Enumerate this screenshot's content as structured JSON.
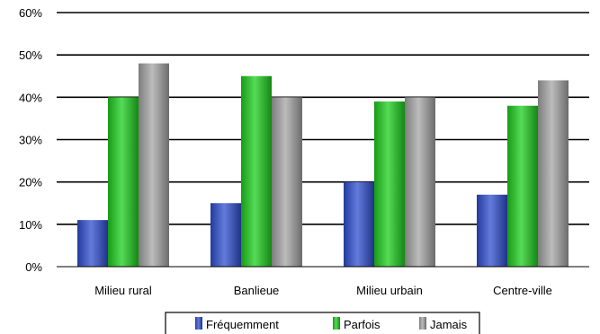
{
  "chart_data": {
    "type": "bar",
    "title": "",
    "xlabel": "",
    "ylabel": "",
    "ylim": [
      0,
      60
    ],
    "yticks": [
      0,
      10,
      20,
      30,
      40,
      50,
      60
    ],
    "ytick_labels": [
      "0%",
      "10%",
      "20%",
      "30%",
      "40%",
      "50%",
      "60%"
    ],
    "categories": [
      "Milieu rural",
      "Banlieue",
      "Milieu urbain",
      "Centre-ville"
    ],
    "series": [
      {
        "name": "Fréquemment",
        "values": [
          11,
          15,
          20,
          17
        ],
        "color": "#2f4fd0"
      },
      {
        "name": "Parfois",
        "values": [
          40,
          45,
          39,
          38
        ],
        "color": "#1ecf1e"
      },
      {
        "name": "Jamais",
        "values": [
          48,
          40,
          40,
          44
        ],
        "color": "#a6a6a6"
      }
    ],
    "grid": true,
    "legend_position": "bottom"
  }
}
